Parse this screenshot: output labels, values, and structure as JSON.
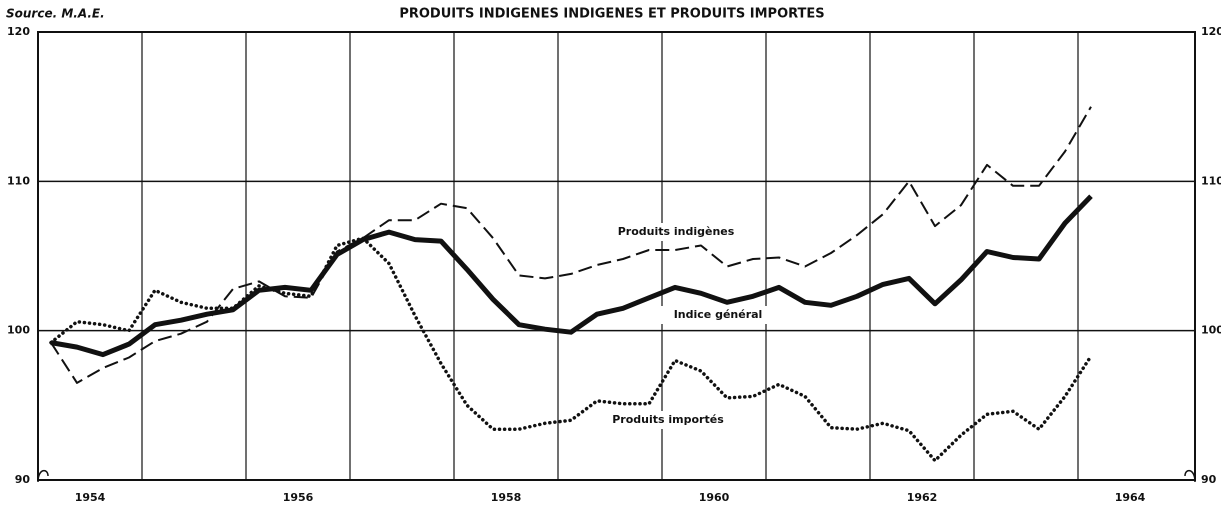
{
  "chart_data": {
    "type": "line",
    "title": "PRODUITS INDIGENES INDIGENES ET PRODUITS IMPORTES",
    "source": "Source. M.A.E.",
    "x": [
      1954.125,
      1954.375,
      1954.625,
      1954.875,
      1955.125,
      1955.375,
      1955.625,
      1955.875,
      1956.125,
      1956.375,
      1956.625,
      1956.875,
      1957.125,
      1957.375,
      1957.625,
      1957.875,
      1958.125,
      1958.375,
      1958.625,
      1958.875,
      1959.125,
      1959.375,
      1959.625,
      1959.875,
      1960.125,
      1960.375,
      1960.625,
      1960.875,
      1961.125,
      1961.375,
      1961.625,
      1961.875,
      1962.125,
      1962.375,
      1962.625,
      1962.875,
      1963.125,
      1963.375,
      1963.625,
      1963.875,
      1964.125
    ],
    "series": [
      {
        "name": "Produits indigènes",
        "color": "#111111",
        "style": "dashed",
        "values": [
          99.2,
          96.5,
          97.5,
          98.2,
          99.3,
          99.8,
          100.6,
          102.8,
          103.3,
          102.3,
          102.2,
          105.3,
          106.2,
          107.4,
          107.4,
          108.5,
          108.2,
          106.2,
          103.7,
          103.5,
          103.8,
          104.4,
          104.8,
          105.4,
          105.4,
          105.7,
          104.3,
          104.8,
          104.9,
          104.3,
          105.2,
          106.4,
          107.8,
          110.0,
          107.0,
          108.4,
          111.1,
          109.7,
          109.7,
          112.0,
          115.0
        ]
      },
      {
        "name": "Indice général",
        "color": "#111111",
        "style": "solid",
        "values": [
          99.2,
          98.9,
          98.4,
          99.1,
          100.4,
          100.7,
          101.1,
          101.4,
          102.7,
          102.9,
          102.7,
          105.1,
          106.1,
          106.6,
          106.1,
          106.0,
          104.1,
          102.1,
          100.4,
          100.1,
          99.9,
          101.1,
          101.5,
          102.2,
          102.9,
          102.5,
          101.9,
          102.3,
          102.9,
          101.9,
          101.7,
          102.3,
          103.1,
          103.5,
          101.8,
          103.4,
          105.3,
          104.9,
          104.8,
          107.2,
          109.0
        ]
      },
      {
        "name": "Produits importés",
        "color": "#111111",
        "style": "dotted",
        "values": [
          99.2,
          100.6,
          100.4,
          100.0,
          102.7,
          101.9,
          101.5,
          101.5,
          103.0,
          102.5,
          102.3,
          105.7,
          106.2,
          104.5,
          101.0,
          97.8,
          95.0,
          93.4,
          93.4,
          93.8,
          94.0,
          95.3,
          95.1,
          95.1,
          98.0,
          97.3,
          95.5,
          95.6,
          96.4,
          95.6,
          93.5,
          93.4,
          93.8,
          93.3,
          91.3,
          93.0,
          94.4,
          94.6,
          93.4,
          95.6,
          98.3
        ]
      }
    ],
    "xlim": [
      1954,
      1965.125
    ],
    "xticks": [
      {
        "value": 1954.5,
        "label": "1954"
      },
      {
        "value": 1956.5,
        "label": "1956"
      },
      {
        "value": 1958.5,
        "label": "1958"
      },
      {
        "value": 1960.5,
        "label": "1960"
      },
      {
        "value": 1962.5,
        "label": "1962"
      },
      {
        "value": 1964.5,
        "label": "1964"
      }
    ],
    "xgrid": [
      1955,
      1956,
      1957,
      1958,
      1959,
      1960,
      1961,
      1962,
      1963,
      1964
    ],
    "ylim": [
      90,
      120
    ],
    "yticks": [
      90,
      100,
      110,
      120
    ],
    "grid": true
  }
}
